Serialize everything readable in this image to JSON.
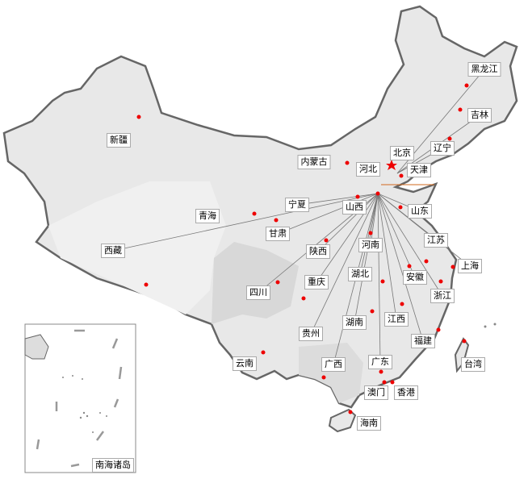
{
  "colors": {
    "dot": "#ee0000",
    "outline": "#666666",
    "fill": "#e6e6e6",
    "leader": "#777777",
    "accent_line": "#d2691e"
  },
  "capital_icon": "star-icon",
  "provinces": [
    {
      "name": "黑龙江"
    },
    {
      "name": "吉林"
    },
    {
      "name": "辽宁"
    },
    {
      "name": "北京"
    },
    {
      "name": "天津"
    },
    {
      "name": "内蒙古"
    },
    {
      "name": "河北"
    },
    {
      "name": "新疆"
    },
    {
      "name": "宁夏"
    },
    {
      "name": "山西"
    },
    {
      "name": "山东"
    },
    {
      "name": "青海"
    },
    {
      "name": "甘肃"
    },
    {
      "name": "江苏"
    },
    {
      "name": "河南"
    },
    {
      "name": "西藏"
    },
    {
      "name": "陕西"
    },
    {
      "name": "上海"
    },
    {
      "name": "湖北"
    },
    {
      "name": "安徽"
    },
    {
      "name": "重庆"
    },
    {
      "name": "四川"
    },
    {
      "name": "浙江"
    },
    {
      "name": "江西"
    },
    {
      "name": "湖南"
    },
    {
      "name": "贵州"
    },
    {
      "name": "福建"
    },
    {
      "name": "台湾"
    },
    {
      "name": "云南"
    },
    {
      "name": "广西"
    },
    {
      "name": "广东"
    },
    {
      "name": "澳门"
    },
    {
      "name": "香港"
    },
    {
      "name": "海南"
    }
  ],
  "inset": {
    "label": "南海诸岛"
  }
}
